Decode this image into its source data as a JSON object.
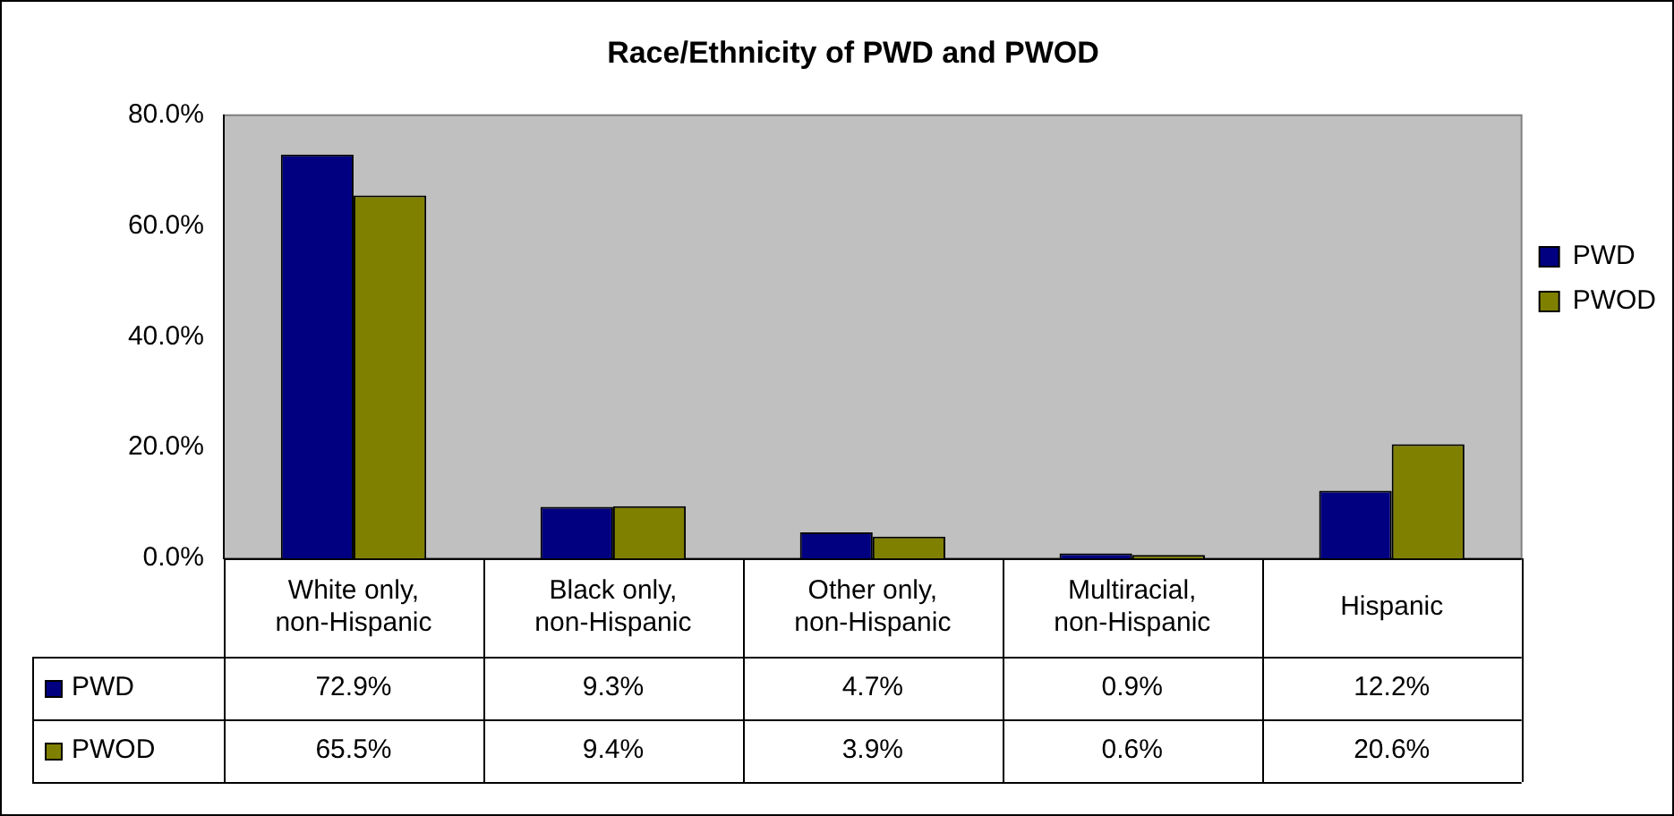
{
  "chart_data": {
    "type": "bar",
    "title": "Race/Ethnicity of PWD and PWOD",
    "categories": [
      "White only, non-Hispanic",
      "Black only, non-Hispanic",
      "Other only, non-Hispanic",
      "Multiracial, non-Hispanic",
      "Hispanic"
    ],
    "series": [
      {
        "name": "PWD",
        "color": "#000080",
        "values": [
          72.9,
          9.3,
          4.7,
          0.9,
          12.2
        ],
        "value_labels": [
          "72.9%",
          "9.3%",
          "4.7%",
          "0.9%",
          "12.2%"
        ]
      },
      {
        "name": "PWOD",
        "color": "#808000",
        "values": [
          65.5,
          9.4,
          3.9,
          0.6,
          20.6
        ],
        "value_labels": [
          "65.5%",
          "9.4%",
          "3.9%",
          "0.6%",
          "20.6%"
        ]
      }
    ],
    "ylim": [
      0,
      80
    ],
    "yticks": [
      {
        "value": 0,
        "label": "0.0%"
      },
      {
        "value": 20,
        "label": "20.0%"
      },
      {
        "value": 40,
        "label": "40.0%"
      },
      {
        "value": 60,
        "label": "60.0%"
      },
      {
        "value": 80,
        "label": "80.0%"
      }
    ],
    "grid": false,
    "legend": "right"
  }
}
